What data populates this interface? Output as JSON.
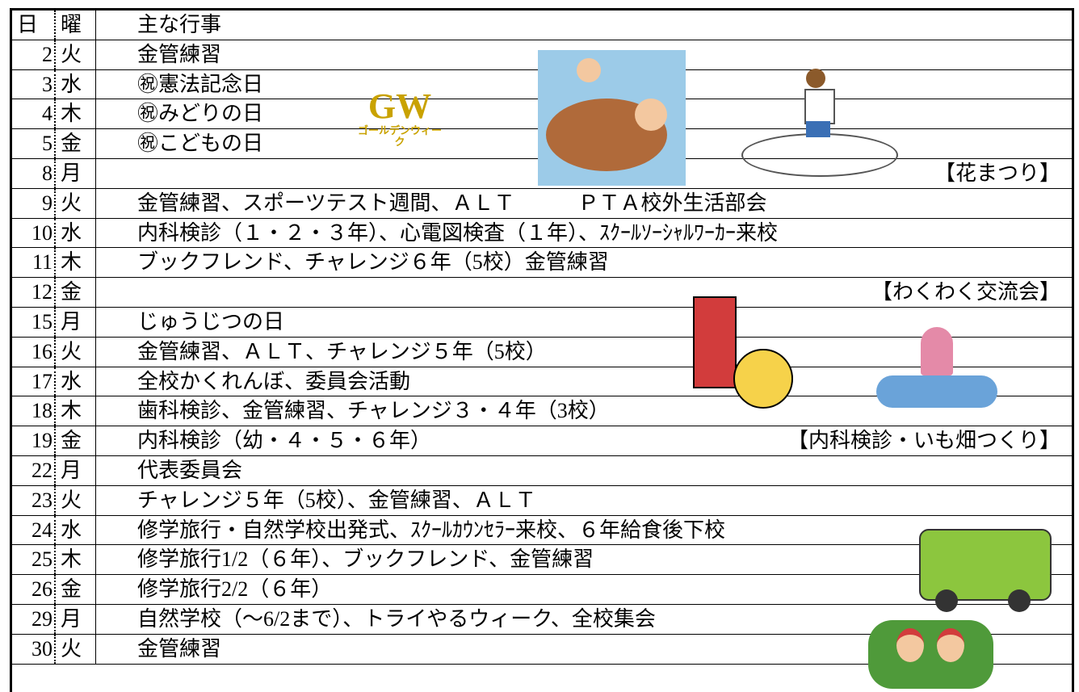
{
  "header": {
    "day": "日",
    "weekday": "曜",
    "event": "主な行事"
  },
  "rows": [
    {
      "day": "2",
      "weekday": "火",
      "event": "金管練習"
    },
    {
      "day": "3",
      "weekday": "水",
      "event": "㊗憲法記念日"
    },
    {
      "day": "4",
      "weekday": "木",
      "event": "㊗みどりの日"
    },
    {
      "day": "5",
      "weekday": "金",
      "event": "㊗こどもの日"
    },
    {
      "day": "8",
      "weekday": "月",
      "note": "【花まつり】"
    },
    {
      "day": "9",
      "weekday": "火",
      "event": "金管練習、スポーツテスト週間、ＡＬＴ　　　ＰＴＡ校外生活部会"
    },
    {
      "day": "10",
      "weekday": "水",
      "event": "内科検診（１・２・３年）、心電図検査（１年）、ｽｸｰﾙｿｰｼｬﾙﾜｰｶｰ来校"
    },
    {
      "day": "11",
      "weekday": "木",
      "event": "ブックフレンド、チャレンジ６年（5校）金管練習"
    },
    {
      "day": "12",
      "weekday": "金",
      "note": "【わくわく交流会】"
    },
    {
      "day": "15",
      "weekday": "月",
      "event": "じゅうじつの日"
    },
    {
      "day": "16",
      "weekday": "火",
      "event": "金管練習、ＡＬＴ、チャレンジ５年（5校）"
    },
    {
      "day": "17",
      "weekday": "水",
      "event": "全校かくれんぼ、委員会活動"
    },
    {
      "day": "18",
      "weekday": "木",
      "event": "歯科検診、金管練習、チャレンジ３・４年（3校）"
    },
    {
      "day": "19",
      "weekday": "金",
      "event": "内科検診（幼・４・５・６年）",
      "note": "【内科検診・いも畑つくり】"
    },
    {
      "day": "22",
      "weekday": "月",
      "event": "代表委員会"
    },
    {
      "day": "23",
      "weekday": "火",
      "event": "チャレンジ５年（5校）、金管練習、ＡＬＴ"
    },
    {
      "day": "24",
      "weekday": "水",
      "event": "修学旅行・自然学校出発式、ｽｸｰﾙｶｳﾝｾﾗｰ来校、６年給食後下校"
    },
    {
      "day": "25",
      "weekday": "木",
      "event": "修学旅行1/2（６年）、ブックフレンド、金管練習"
    },
    {
      "day": "26",
      "weekday": "金",
      "event": "修学旅行2/2（６年）"
    },
    {
      "day": "29",
      "weekday": "月",
      "event": "自然学校（～6/2まで）、トライやるウィーク、全校集会"
    },
    {
      "day": "30",
      "weekday": "火",
      "event": "金管練習"
    }
  ],
  "gw": {
    "title": "GW",
    "subtitle": "ゴールデンウィーク"
  }
}
